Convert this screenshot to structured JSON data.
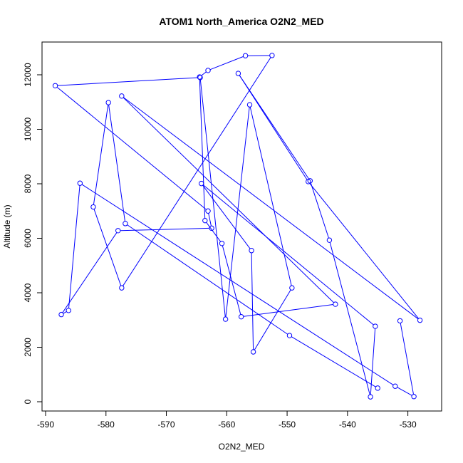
{
  "chart_data": {
    "type": "line",
    "title": "ATOM1 North_America O2N2_MED",
    "xlabel": "O2N2_MED",
    "ylabel": "Altitude (m)",
    "xlim": [
      -590,
      -525
    ],
    "ylim": [
      0,
      12800
    ],
    "xticks": [
      -590,
      -580,
      -570,
      -560,
      -550,
      -540,
      -530
    ],
    "yticks": [
      0,
      2000,
      4000,
      6000,
      8000,
      10000,
      12000
    ],
    "xtick_labels": [
      "-590",
      "-580",
      "-570",
      "-560",
      "-550",
      "-540",
      "-530"
    ],
    "ytick_labels": [
      "0",
      "2000",
      "4000",
      "6000",
      "8000",
      "10000",
      "12000"
    ],
    "grid": false,
    "series": [
      {
        "color": "#0000ff",
        "marker": "open-circle",
        "points": [
          {
            "x": -531.3,
            "y": 2970
          },
          {
            "x": -529.0,
            "y": 190
          },
          {
            "x": -532.1,
            "y": 570
          },
          {
            "x": -584.3,
            "y": 8020
          },
          {
            "x": -586.2,
            "y": 3350
          },
          {
            "x": -587.4,
            "y": 3200
          },
          {
            "x": -578.0,
            "y": 6280
          },
          {
            "x": -562.5,
            "y": 6370
          },
          {
            "x": -563.1,
            "y": 7000
          },
          {
            "x": -588.4,
            "y": 11600
          },
          {
            "x": -564.4,
            "y": 11900
          },
          {
            "x": -560.2,
            "y": 3030
          },
          {
            "x": -556.2,
            "y": 10900
          },
          {
            "x": -549.2,
            "y": 4180
          },
          {
            "x": -555.6,
            "y": 1830
          },
          {
            "x": -555.9,
            "y": 5550
          },
          {
            "x": -564.2,
            "y": 8010
          },
          {
            "x": -535.4,
            "y": 2770
          },
          {
            "x": -536.2,
            "y": 180
          },
          {
            "x": -543.0,
            "y": 5930
          },
          {
            "x": -546.2,
            "y": 8110
          },
          {
            "x": -558.1,
            "y": 12050
          },
          {
            "x": -546.5,
            "y": 8080
          },
          {
            "x": -528.0,
            "y": 2990
          },
          {
            "x": -577.4,
            "y": 11220
          },
          {
            "x": -542.0,
            "y": 3580
          },
          {
            "x": -557.6,
            "y": 3120
          },
          {
            "x": -560.8,
            "y": 5810
          },
          {
            "x": -563.6,
            "y": 6650
          },
          {
            "x": -564.5,
            "y": 11920
          },
          {
            "x": -563.1,
            "y": 12160
          },
          {
            "x": -556.9,
            "y": 12700
          },
          {
            "x": -552.5,
            "y": 12710
          },
          {
            "x": -577.4,
            "y": 4180
          },
          {
            "x": -582.1,
            "y": 7150
          },
          {
            "x": -579.6,
            "y": 10980
          },
          {
            "x": -576.8,
            "y": 6540
          },
          {
            "x": -549.6,
            "y": 2430
          },
          {
            "x": -535.0,
            "y": 500
          }
        ]
      }
    ]
  }
}
